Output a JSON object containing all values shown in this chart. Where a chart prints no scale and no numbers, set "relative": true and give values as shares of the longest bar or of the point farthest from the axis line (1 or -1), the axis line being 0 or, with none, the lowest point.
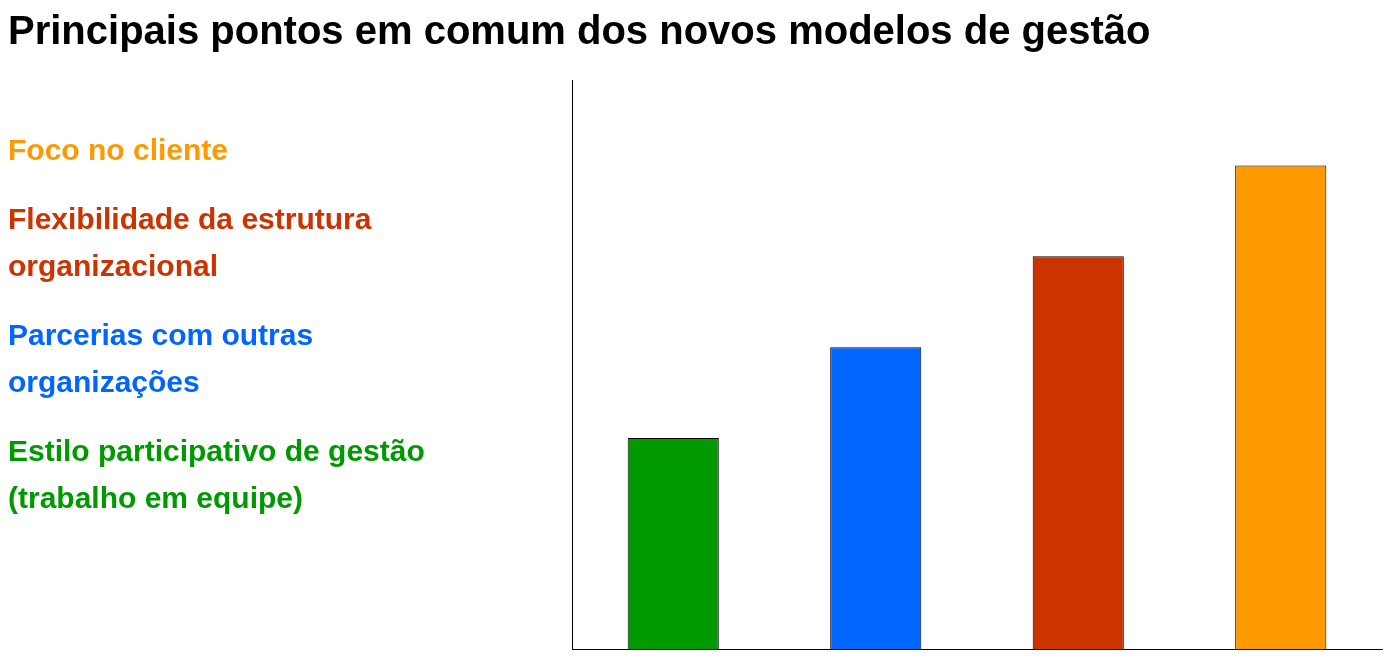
{
  "chart_data": {
    "type": "bar",
    "title": "Principais pontos em comum dos novos modelos de gestão",
    "relative": true,
    "categories": [
      null,
      null,
      null,
      null
    ],
    "values": [
      0.4375,
      0.625,
      0.8125,
      1
    ],
    "colors": [
      "#009900",
      "#0066ff",
      "#cc3300",
      "#ff9900"
    ],
    "annotations": [
      "Foco no cliente",
      "Flexibilidade da estrutura organizacional",
      "Parcerias com outras organizações",
      "Estilo participativo de gestão (trabalho em equipe)"
    ]
  }
}
